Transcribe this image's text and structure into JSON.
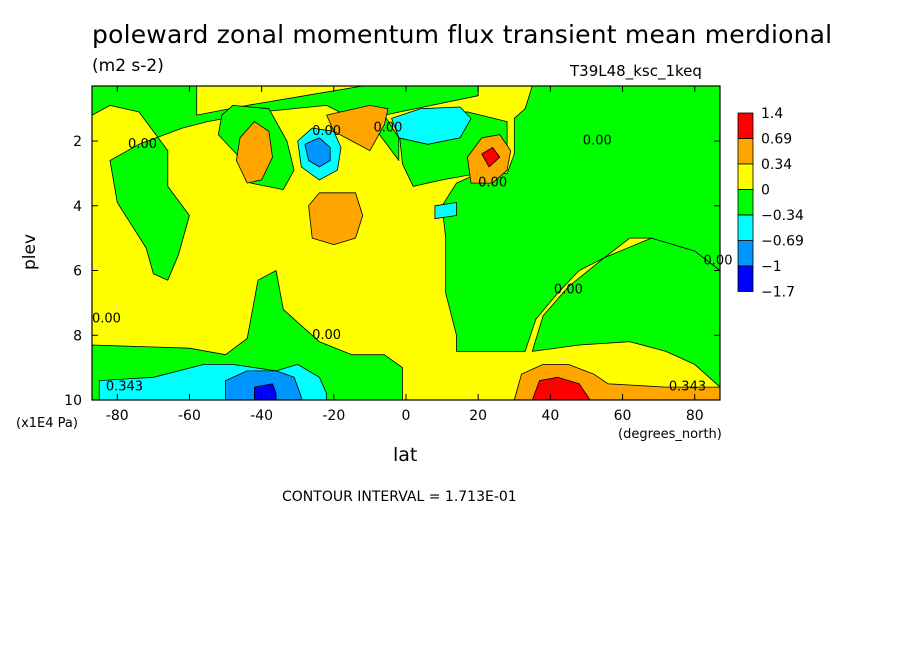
{
  "chart_data": {
    "type": "heatmap",
    "title": "poleward zonal momentum flux transient mean merdional",
    "units": "(m2 s-2)",
    "dataset": "T39L48_ksc_1keq",
    "xlabel": "lat",
    "ylabel": "plev",
    "y_unit_label": "(x1E4 Pa)",
    "x_unit_label": "(degrees_north)",
    "contour_interval_text": "CONTOUR INTERVAL = 1.713E-01",
    "xlim": [
      -87,
      87
    ],
    "ylim": [
      10,
      0.3
    ],
    "x_ticks": [
      -80,
      -60,
      -40,
      -20,
      0,
      20,
      40,
      60,
      80
    ],
    "y_ticks": [
      2,
      4,
      6,
      8,
      10
    ],
    "legend": {
      "placement": "right",
      "levels": [
        "1.4",
        "0.69",
        "0.34",
        "0",
        "-0.34",
        "-0.69",
        "-1",
        "-1.7"
      ],
      "colors": [
        "#ff0000",
        "#ffa500",
        "#ffff00",
        "#00ff00",
        "#00ffff",
        "#0096ff",
        "#0000ff"
      ]
    },
    "contour_labels": [
      {
        "text": "0.00",
        "x": -73,
        "y": 2.1
      },
      {
        "text": "0.00",
        "x": -22,
        "y": 1.7
      },
      {
        "text": "0.00",
        "x": -5,
        "y": 1.6
      },
      {
        "text": "0.00",
        "x": 53,
        "y": 2.0
      },
      {
        "text": "0.00",
        "x": 24,
        "y": 3.3
      },
      {
        "text": "0.00",
        "x": 88,
        "y": 5.7
      },
      {
        "text": "0.00",
        "x": 45,
        "y": 6.6
      },
      {
        "text": "0.00",
        "x": -83,
        "y": 7.5
      },
      {
        "text": "0.00",
        "x": -22,
        "y": 8.0
      },
      {
        "text": "0.343",
        "x": -78,
        "y": 9.6
      },
      {
        "text": "0.343",
        "x": 78,
        "y": 9.6
      }
    ],
    "regions": [
      {
        "color": "#00ff00",
        "points": [
          [
            -87,
            0.3
          ],
          [
            -58,
            0.3
          ],
          [
            -58,
            1.2
          ],
          [
            -44,
            0.9
          ],
          [
            -28,
            0.6
          ],
          [
            -12,
            0.3
          ],
          [
            20,
            0.3
          ],
          [
            20,
            0.6
          ],
          [
            -6,
            1.2
          ],
          [
            -2,
            1.9
          ],
          [
            -2,
            2.6
          ],
          [
            -8,
            1.7
          ],
          [
            -22,
            0.9
          ],
          [
            -40,
            1.1
          ],
          [
            -55,
            1.4
          ],
          [
            -62,
            1.6
          ],
          [
            -74,
            2.1
          ],
          [
            -82,
            2.6
          ],
          [
            -80,
            3.9
          ],
          [
            -76,
            4.6
          ],
          [
            -72,
            5.3
          ],
          [
            -70,
            6.1
          ],
          [
            -66,
            6.3
          ],
          [
            -63,
            5.5
          ],
          [
            -60,
            4.3
          ],
          [
            -66,
            3.4
          ],
          [
            -66,
            2.3
          ],
          [
            -74,
            1.1
          ],
          [
            -82,
            0.9
          ],
          [
            -87,
            1.2
          ]
        ]
      },
      {
        "color": "#00ff00",
        "points": [
          [
            -51,
            1.2
          ],
          [
            -48,
            0.9
          ],
          [
            -38,
            1.0
          ],
          [
            -36,
            1.4
          ],
          [
            -33,
            2.0
          ],
          [
            -31,
            2.9
          ],
          [
            -34,
            3.5
          ],
          [
            -43,
            3.3
          ],
          [
            -47,
            2.4
          ],
          [
            -52,
            1.8
          ]
        ]
      },
      {
        "color": "#00ff00",
        "points": [
          [
            -2,
            1.6
          ],
          [
            5,
            1.2
          ],
          [
            17,
            1.1
          ],
          [
            28,
            1.4
          ],
          [
            28,
            2.3
          ],
          [
            20,
            3.0
          ],
          [
            10,
            3.2
          ],
          [
            2,
            3.4
          ],
          [
            -1,
            2.7
          ]
        ]
      },
      {
        "color": "#00ff00",
        "points": [
          [
            35,
            0.3
          ],
          [
            87,
            0.3
          ],
          [
            87,
            6.0
          ],
          [
            80,
            5.4
          ],
          [
            68,
            5.0
          ],
          [
            62,
            5.0
          ],
          [
            55,
            5.6
          ],
          [
            48,
            6.0
          ],
          [
            42,
            6.7
          ],
          [
            36,
            7.5
          ],
          [
            33,
            8.5
          ],
          [
            18,
            8.5
          ],
          [
            14,
            8.5
          ],
          [
            14,
            8.0
          ],
          [
            11,
            6.7
          ],
          [
            11,
            5.0
          ],
          [
            10,
            4.0
          ],
          [
            14,
            3.3
          ],
          [
            20,
            3.0
          ],
          [
            28,
            3.0
          ],
          [
            30,
            2.4
          ],
          [
            30,
            1.3
          ],
          [
            33,
            1.0
          ]
        ]
      },
      {
        "color": "#00ff00",
        "points": [
          [
            68,
            5.0
          ],
          [
            80,
            5.4
          ],
          [
            87,
            6.0
          ],
          [
            87,
            9.6
          ],
          [
            80,
            8.9
          ],
          [
            72,
            8.5
          ],
          [
            62,
            8.2
          ],
          [
            48,
            8.3
          ],
          [
            35,
            8.5
          ],
          [
            38,
            7.4
          ],
          [
            45,
            6.5
          ],
          [
            55,
            5.6
          ]
        ]
      },
      {
        "color": "#00ff00",
        "points": [
          [
            -87,
            8.3
          ],
          [
            -60,
            8.4
          ],
          [
            -50,
            8.6
          ],
          [
            -44,
            8.1
          ],
          [
            -41,
            6.3
          ],
          [
            -36,
            6.0
          ],
          [
            -34,
            7.2
          ],
          [
            -28,
            7.8
          ],
          [
            -24,
            8.2
          ],
          [
            -15,
            8.6
          ],
          [
            -6,
            8.6
          ],
          [
            -1,
            9.0
          ],
          [
            -1,
            10
          ],
          [
            -87,
            10
          ]
        ]
      },
      {
        "color": "#00ffff",
        "points": [
          [
            -30,
            2.0
          ],
          [
            -26,
            1.6
          ],
          [
            -20,
            1.7
          ],
          [
            -18,
            2.2
          ],
          [
            -19,
            2.9
          ],
          [
            -24,
            3.2
          ],
          [
            -29,
            2.8
          ]
        ]
      },
      {
        "color": "#00ffff",
        "points": [
          [
            -4,
            1.3
          ],
          [
            4,
            1.0
          ],
          [
            15,
            0.95
          ],
          [
            18,
            1.3
          ],
          [
            15,
            1.9
          ],
          [
            6,
            2.1
          ],
          [
            -2,
            1.9
          ]
        ]
      },
      {
        "color": "#00ffff",
        "points": [
          [
            8,
            4.0
          ],
          [
            14,
            3.9
          ],
          [
            14,
            4.3
          ],
          [
            8,
            4.4
          ]
        ]
      },
      {
        "color": "#00ffff",
        "points": [
          [
            -85,
            9.4
          ],
          [
            -70,
            9.3
          ],
          [
            -56,
            8.9
          ],
          [
            -48,
            8.9
          ],
          [
            -36,
            9.1
          ],
          [
            -30,
            8.9
          ],
          [
            -24,
            9.3
          ],
          [
            -22,
            9.8
          ],
          [
            -22,
            10
          ],
          [
            -85,
            10
          ]
        ]
      },
      {
        "color": "#0096ff",
        "points": [
          [
            -28,
            2.1
          ],
          [
            -24,
            1.9
          ],
          [
            -21,
            2.2
          ],
          [
            -21,
            2.6
          ],
          [
            -24,
            2.8
          ],
          [
            -27,
            2.6
          ]
        ]
      },
      {
        "color": "#0096ff",
        "points": [
          [
            -50,
            9.4
          ],
          [
            -44,
            9.1
          ],
          [
            -36,
            9.1
          ],
          [
            -31,
            9.3
          ],
          [
            -29,
            9.9
          ],
          [
            -29,
            10
          ],
          [
            -50,
            10
          ]
        ]
      },
      {
        "color": "#0000ff",
        "points": [
          [
            -42,
            9.6
          ],
          [
            -37,
            9.5
          ],
          [
            -36,
            9.8
          ],
          [
            -36,
            10
          ],
          [
            -42,
            10
          ]
        ]
      },
      {
        "color": "#ffa500",
        "points": [
          [
            -46,
            1.9
          ],
          [
            -42,
            1.4
          ],
          [
            -38,
            1.7
          ],
          [
            -37,
            2.5
          ],
          [
            -40,
            3.2
          ],
          [
            -44,
            3.3
          ],
          [
            -47,
            2.6
          ]
        ]
      },
      {
        "color": "#ffa500",
        "points": [
          [
            -22,
            1.2
          ],
          [
            -10,
            0.9
          ],
          [
            -5,
            1.0
          ],
          [
            -6,
            1.5
          ],
          [
            -10,
            2.3
          ],
          [
            -15,
            2.0
          ],
          [
            -20,
            1.7
          ]
        ]
      },
      {
        "color": "#ffa500",
        "points": [
          [
            -27,
            4.0
          ],
          [
            -24,
            3.6
          ],
          [
            -14,
            3.6
          ],
          [
            -12,
            4.3
          ],
          [
            -14,
            5.0
          ],
          [
            -20,
            5.2
          ],
          [
            -26,
            5.0
          ]
        ]
      },
      {
        "color": "#ffa500",
        "points": [
          [
            17,
            2.5
          ],
          [
            21,
            1.9
          ],
          [
            26,
            1.8
          ],
          [
            29,
            2.3
          ],
          [
            28,
            2.9
          ],
          [
            24,
            3.3
          ],
          [
            18,
            3.3
          ]
        ]
      },
      {
        "color": "#ffa500",
        "points": [
          [
            30,
            10
          ],
          [
            32,
            9.2
          ],
          [
            38,
            8.9
          ],
          [
            45,
            8.9
          ],
          [
            52,
            9.2
          ],
          [
            56,
            9.5
          ],
          [
            72,
            9.6
          ],
          [
            84,
            9.6
          ],
          [
            87,
            9.6
          ],
          [
            87,
            10
          ]
        ]
      },
      {
        "color": "#ff0000",
        "points": [
          [
            21,
            2.4
          ],
          [
            24,
            2.2
          ],
          [
            26,
            2.5
          ],
          [
            23,
            2.8
          ]
        ]
      },
      {
        "color": "#ff0000",
        "points": [
          [
            35,
            10
          ],
          [
            37,
            9.4
          ],
          [
            42,
            9.3
          ],
          [
            48,
            9.5
          ],
          [
            51,
            10
          ]
        ]
      }
    ]
  }
}
